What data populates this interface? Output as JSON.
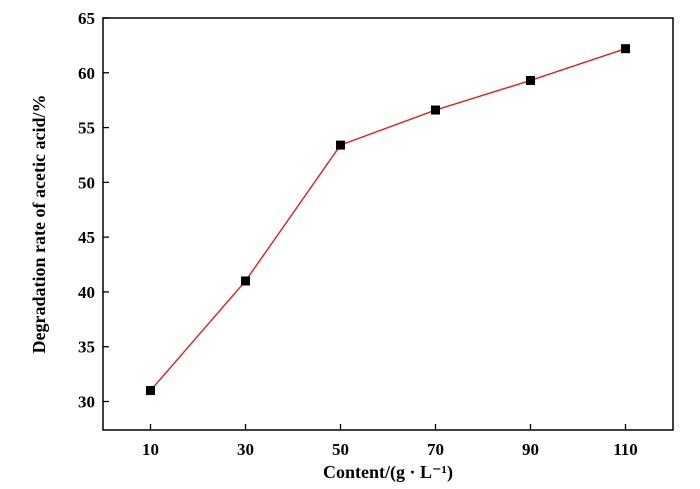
{
  "chart_data": {
    "type": "line",
    "title": "",
    "xlabel": "Content/(g · L⁻¹)",
    "ylabel": "Degradation rate of acetic acid/%",
    "x": [
      10,
      30,
      50,
      70,
      90,
      110
    ],
    "xticks": [
      10,
      30,
      50,
      70,
      90,
      110
    ],
    "yticks": [
      30,
      35,
      40,
      45,
      50,
      55,
      60,
      65
    ],
    "xlim": [
      0,
      120
    ],
    "ylim": [
      27.4,
      65
    ],
    "grid": false,
    "series": [
      {
        "values": [
          31.0,
          41.0,
          53.4,
          56.6,
          59.3,
          62.2
        ],
        "line_color": "#e02020",
        "marker": "square",
        "marker_color": "#000000"
      }
    ]
  }
}
